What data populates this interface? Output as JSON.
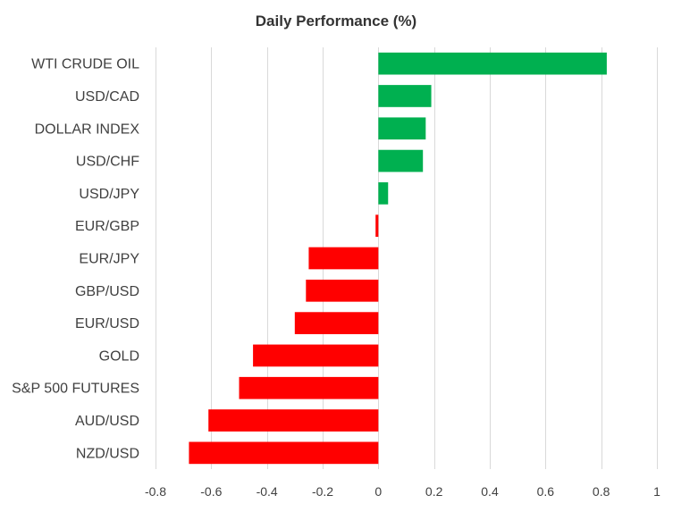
{
  "chart_data": {
    "type": "bar",
    "orientation": "horizontal",
    "title": "Daily Performance  (%)",
    "xlabel": "",
    "ylabel": "",
    "categories": [
      "WTI CRUDE OIL",
      "USD/CAD",
      "DOLLAR INDEX",
      "USD/CHF",
      "USD/JPY",
      "EUR/GBP",
      "EUR/JPY",
      "GBP/USD",
      "EUR/USD",
      "GOLD",
      "S&P 500 FUTURES",
      "AUD/USD",
      "NZD/USD"
    ],
    "values": [
      0.82,
      0.19,
      0.17,
      0.16,
      0.035,
      -0.01,
      -0.25,
      -0.26,
      -0.3,
      -0.45,
      -0.5,
      -0.61,
      -0.68
    ],
    "xlim": [
      -0.8,
      1
    ],
    "xticks": [
      -0.8,
      -0.6,
      -0.4,
      -0.2,
      0,
      0.2,
      0.4,
      0.6,
      0.8,
      1
    ],
    "xtick_labels": [
      "-0.8",
      "-0.6",
      "-0.4",
      "-0.2",
      "0",
      "0.2",
      "0.4",
      "0.6",
      "0.8",
      "1"
    ],
    "grid": "vertical",
    "legend": "none",
    "colors": {
      "positive": "#00b050",
      "negative": "#ff0000",
      "grid": "#d9d9d9"
    }
  }
}
